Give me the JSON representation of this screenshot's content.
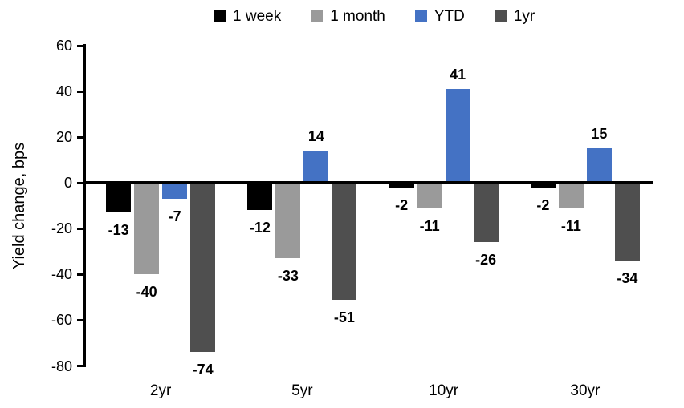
{
  "chart_data": {
    "type": "bar",
    "title": "",
    "xlabel": "",
    "ylabel": "Yield change, bps",
    "ylim": [
      -80,
      60
    ],
    "yticks": [
      60,
      40,
      20,
      0,
      -20,
      -40,
      -60,
      -80
    ],
    "grid": false,
    "legend_position": "top",
    "categories": [
      "2yr",
      "5yr",
      "10yr",
      "30yr"
    ],
    "series": [
      {
        "name": "1 week",
        "color": "#000000",
        "values": [
          -13,
          -12,
          -2,
          -2
        ]
      },
      {
        "name": "1 month",
        "color": "#9A9A9A",
        "values": [
          -40,
          -33,
          -11,
          -11
        ]
      },
      {
        "name": "YTD",
        "color": "#4472C4",
        "values": [
          -7,
          14,
          41,
          15
        ]
      },
      {
        "name": "1yr",
        "color": "#4F4F4F",
        "values": [
          -74,
          -51,
          -26,
          -34
        ]
      }
    ],
    "axis_color": "#000000",
    "data_label_color": "#000000"
  }
}
